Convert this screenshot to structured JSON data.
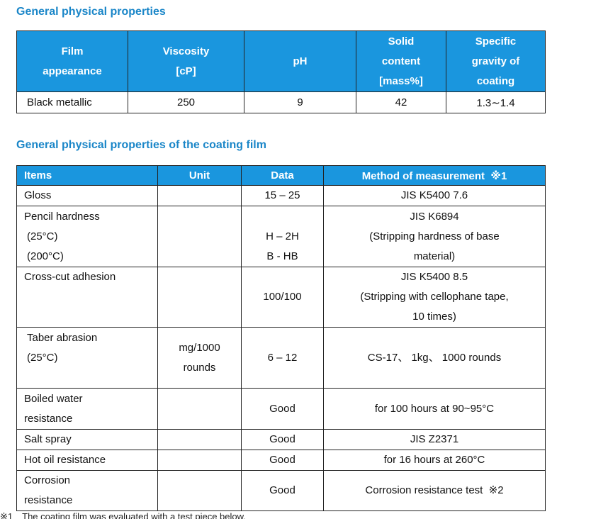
{
  "title1": "General physical properties",
  "table1": {
    "headers": [
      [
        "Film",
        "appearance"
      ],
      [
        "Viscosity",
        "[cP]"
      ],
      [
        "pH"
      ],
      [
        "Solid",
        "content",
        "[mass%]"
      ],
      [
        "Specific",
        "gravity of",
        "coating"
      ]
    ],
    "row": [
      "Black metallic",
      "250",
      "9",
      "42",
      "1.3∼1.4"
    ]
  },
  "title2": "General physical properties of the coating film",
  "table2": {
    "headers": [
      "Items",
      "Unit",
      "Data",
      "Method of measurement  ※1"
    ],
    "rows": [
      {
        "item": [
          "Gloss"
        ],
        "unit": [],
        "data": [
          "15 – 25"
        ],
        "method": [
          "JIS K5400 7.6"
        ]
      },
      {
        "item": [
          "Pencil hardness",
          "(25°C)",
          "(200°C)"
        ],
        "unit": [],
        "data": [
          "H – 2H",
          "B - HB"
        ],
        "method": [
          "JIS K6894",
          "(Stripping hardness of base",
          "material)"
        ]
      },
      {
        "item": [
          "Cross-cut adhesion"
        ],
        "unit": [],
        "data": [
          "100/100"
        ],
        "method": [
          "JIS K5400 8.5",
          "(Stripping with cellophane tape,",
          "10 times)"
        ]
      },
      {
        "item": [
          "Taber abrasion",
          "(25°C)"
        ],
        "unit": [
          "mg/1000",
          "rounds"
        ],
        "data": [
          "6 – 12"
        ],
        "method": [
          "CS-17、 1kg、 1000 rounds"
        ]
      },
      {
        "item": [
          "Boiled water",
          "resistance"
        ],
        "unit": [],
        "data": [
          "Good"
        ],
        "method": [
          "for 100 hours at 90~95°C"
        ]
      },
      {
        "item": [
          "Salt spray"
        ],
        "unit": [],
        "data": [
          "Good"
        ],
        "method": [
          "JIS Z2371"
        ]
      },
      {
        "item": [
          "Hot oil resistance"
        ],
        "unit": [],
        "data": [
          "Good"
        ],
        "method": [
          "for 16 hours at 260°C"
        ]
      },
      {
        "item": [
          "Corrosion",
          "resistance"
        ],
        "unit": [],
        "data": [
          "Good"
        ],
        "method": [
          "Corrosion resistance test  ※2"
        ]
      }
    ]
  },
  "footnote": "※1　The coating film was evaluated with a test piece below."
}
